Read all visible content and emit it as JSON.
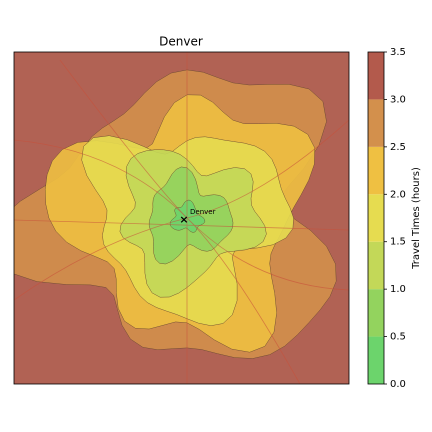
{
  "title": "Denver",
  "map": {
    "marker_label": "Denver"
  },
  "colorbar": {
    "label": "Travel Times (hours)",
    "ticks": [
      {
        "value": 0,
        "label": "0.0"
      },
      {
        "value": 0.5,
        "label": "0.5"
      },
      {
        "value": 1,
        "label": "1.0"
      },
      {
        "value": 1.5,
        "label": "1.5"
      },
      {
        "value": 2,
        "label": "2.0"
      },
      {
        "value": 2.5,
        "label": "2.5"
      },
      {
        "value": 3,
        "label": "3.0"
      },
      {
        "value": 3.5,
        "label": "3.5"
      }
    ],
    "colors": [
      "#6cd46c",
      "#93d35e",
      "#c3d858",
      "#e6dc50",
      "#efc042",
      "#d3904c",
      "#b35a4c"
    ]
  }
}
